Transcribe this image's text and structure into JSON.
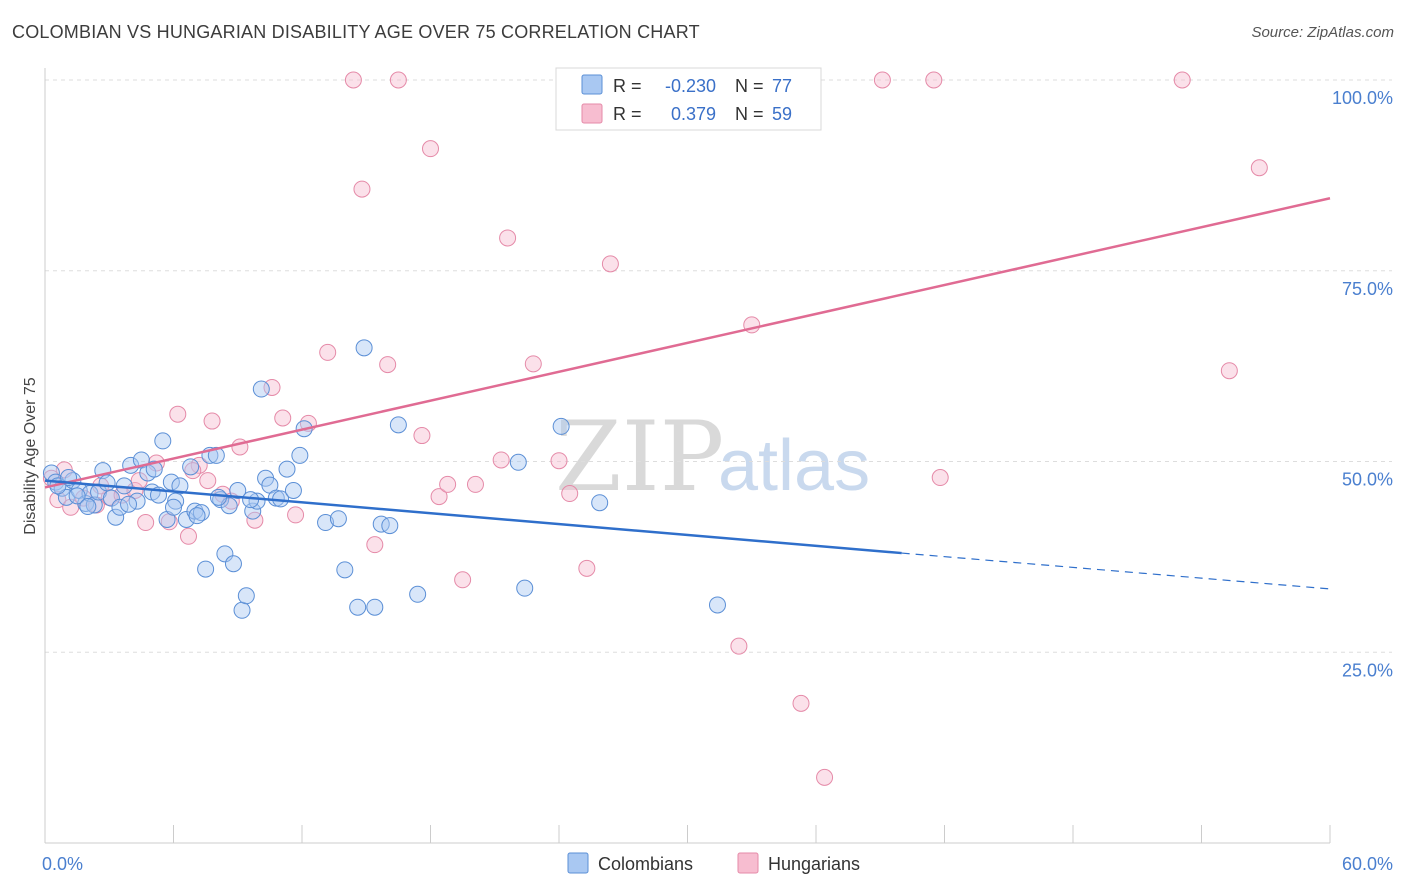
{
  "title": "COLOMBIAN VS HUNGARIAN DISABILITY AGE OVER 75 CORRELATION CHART",
  "source": "Source: ZipAtlas.com",
  "watermark": {
    "zip": "ZIP",
    "atlas": "atlas"
  },
  "colors": {
    "colombians_fill": "#a9c8f2",
    "colombians_stroke": "#5b8fd6",
    "colombians_line": "#2f6fcb",
    "hungarians_fill": "#f7bdd0",
    "hungarians_stroke": "#e58aa8",
    "hungarians_line": "#e06b93",
    "axis_text": "#4a7fcf",
    "grid": "#dddddd"
  },
  "stats_box": {
    "rows": [
      {
        "r_label": "R =",
        "r_value": "-0.230",
        "n_label": "N =",
        "n_value": "77"
      },
      {
        "r_label": "R =",
        "r_value": "0.379",
        "n_label": "N =",
        "n_value": "59"
      }
    ]
  },
  "legend": {
    "items": [
      "Colombians",
      "Hungarians"
    ]
  },
  "chart_data": {
    "type": "scatter",
    "title": "COLOMBIAN VS HUNGARIAN DISABILITY AGE OVER 75 CORRELATION CHART",
    "xlabel": "",
    "ylabel": "Disability Age Over 75",
    "xlim": [
      0,
      60
    ],
    "ylim": [
      0,
      100
    ],
    "x_tick_labels": [
      "0.0%",
      "60.0%"
    ],
    "y_ticks": [
      25,
      50,
      75,
      100
    ],
    "y_tick_labels": [
      "25.0%",
      "50.0%",
      "75.0%",
      "100.0%"
    ],
    "grid": true,
    "legend_position": "bottom",
    "series": [
      {
        "name": "Colombians",
        "trend": {
          "x_start": 0,
          "y_start": 47.5,
          "x_solid_end": 40,
          "y_solid_end": 38.0,
          "x_dash_end": 60,
          "y_dash_end": 33.3
        },
        "points": [
          [
            0.3,
            48.5
          ],
          [
            0.5,
            47.3
          ],
          [
            0.8,
            46.5
          ],
          [
            1.0,
            45.3
          ],
          [
            1.3,
            47.5
          ],
          [
            1.6,
            46.2
          ],
          [
            1.9,
            44.5
          ],
          [
            2.1,
            45.8
          ],
          [
            2.3,
            44.3
          ],
          [
            2.5,
            46.0
          ],
          [
            2.7,
            48.8
          ],
          [
            2.9,
            47.2
          ],
          [
            3.1,
            45.2
          ],
          [
            3.3,
            42.7
          ],
          [
            3.5,
            44.0
          ],
          [
            3.7,
            46.8
          ],
          [
            4.0,
            49.5
          ],
          [
            4.3,
            44.8
          ],
          [
            4.5,
            50.2
          ],
          [
            4.8,
            48.5
          ],
          [
            5.0,
            46.0
          ],
          [
            5.3,
            45.6
          ],
          [
            5.5,
            52.7
          ],
          [
            5.7,
            42.4
          ],
          [
            5.9,
            47.3
          ],
          [
            6.1,
            44.8
          ],
          [
            6.3,
            46.8
          ],
          [
            6.6,
            42.4
          ],
          [
            6.8,
            49.3
          ],
          [
            7.0,
            43.5
          ],
          [
            7.3,
            43.3
          ],
          [
            7.5,
            35.9
          ],
          [
            7.7,
            50.8
          ],
          [
            8.0,
            50.8
          ],
          [
            8.2,
            45.0
          ],
          [
            8.4,
            37.9
          ],
          [
            8.6,
            44.2
          ],
          [
            8.8,
            36.6
          ],
          [
            9.0,
            46.2
          ],
          [
            9.2,
            30.5
          ],
          [
            9.4,
            32.4
          ],
          [
            9.7,
            43.5
          ],
          [
            9.9,
            44.8
          ],
          [
            10.1,
            59.5
          ],
          [
            10.3,
            47.8
          ],
          [
            10.5,
            46.9
          ],
          [
            10.8,
            45.2
          ],
          [
            11.0,
            45.1
          ],
          [
            11.3,
            49.0
          ],
          [
            11.6,
            46.2
          ],
          [
            11.9,
            50.8
          ],
          [
            12.1,
            54.3
          ],
          [
            13.1,
            42.0
          ],
          [
            13.7,
            42.5
          ],
          [
            14.0,
            35.8
          ],
          [
            14.6,
            30.9
          ],
          [
            14.9,
            64.9
          ],
          [
            15.4,
            30.9
          ],
          [
            15.7,
            41.8
          ],
          [
            16.1,
            41.6
          ],
          [
            16.5,
            54.8
          ],
          [
            17.4,
            32.6
          ],
          [
            22.1,
            49.9
          ],
          [
            22.4,
            33.4
          ],
          [
            24.1,
            54.6
          ],
          [
            25.9,
            44.6
          ],
          [
            31.4,
            31.2
          ],
          [
            0.6,
            46.8
          ],
          [
            1.1,
            47.9
          ],
          [
            1.5,
            45.5
          ],
          [
            2.0,
            44.1
          ],
          [
            3.9,
            44.4
          ],
          [
            5.1,
            49.0
          ],
          [
            6.0,
            44.0
          ],
          [
            7.1,
            42.9
          ],
          [
            8.1,
            45.3
          ],
          [
            9.6,
            45.0
          ]
        ]
      },
      {
        "name": "Hungarians",
        "trend": {
          "x_start": 0,
          "y_start": 46.6,
          "x_end": 60,
          "y_end": 84.5
        },
        "points": [
          [
            0.3,
            47.8
          ],
          [
            0.6,
            45.0
          ],
          [
            1.2,
            44.0
          ],
          [
            1.8,
            45.2
          ],
          [
            2.4,
            44.3
          ],
          [
            3.0,
            45.3
          ],
          [
            3.6,
            45.6
          ],
          [
            4.2,
            46.2
          ],
          [
            4.7,
            42.0
          ],
          [
            5.2,
            49.8
          ],
          [
            5.8,
            42.1
          ],
          [
            6.2,
            56.2
          ],
          [
            6.7,
            40.2
          ],
          [
            7.2,
            49.5
          ],
          [
            7.6,
            47.5
          ],
          [
            7.8,
            55.3
          ],
          [
            8.3,
            45.7
          ],
          [
            8.7,
            44.8
          ],
          [
            9.1,
            51.9
          ],
          [
            9.8,
            42.3
          ],
          [
            10.6,
            59.7
          ],
          [
            11.1,
            55.7
          ],
          [
            11.7,
            43.0
          ],
          [
            12.3,
            55.0
          ],
          [
            13.2,
            64.3
          ],
          [
            14.4,
            100.0
          ],
          [
            14.8,
            85.7
          ],
          [
            15.4,
            39.1
          ],
          [
            16.0,
            62.7
          ],
          [
            16.5,
            100.0
          ],
          [
            17.6,
            53.4
          ],
          [
            18.0,
            91.0
          ],
          [
            18.4,
            45.4
          ],
          [
            18.8,
            47.0
          ],
          [
            19.5,
            34.5
          ],
          [
            20.1,
            47.0
          ],
          [
            21.3,
            50.2
          ],
          [
            21.6,
            79.3
          ],
          [
            22.8,
            62.8
          ],
          [
            24.0,
            50.1
          ],
          [
            24.5,
            45.8
          ],
          [
            25.3,
            36.0
          ],
          [
            26.4,
            75.9
          ],
          [
            28.3,
            100.0
          ],
          [
            28.8,
            100.0
          ],
          [
            32.4,
            25.8
          ],
          [
            33.0,
            67.9
          ],
          [
            35.3,
            18.3
          ],
          [
            36.4,
            8.6
          ],
          [
            39.1,
            100.0
          ],
          [
            41.5,
            100.0
          ],
          [
            41.8,
            47.9
          ],
          [
            53.1,
            100.0
          ],
          [
            55.3,
            61.9
          ],
          [
            56.7,
            88.5
          ],
          [
            0.9,
            48.9
          ],
          [
            2.6,
            46.8
          ],
          [
            4.4,
            47.5
          ],
          [
            6.9,
            48.8
          ]
        ]
      }
    ]
  }
}
